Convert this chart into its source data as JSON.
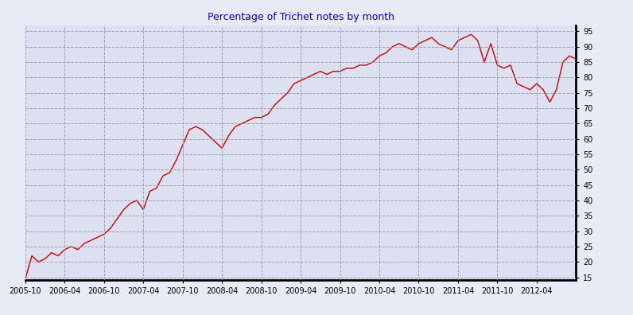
{
  "title": "Percentage of Trichet notes by month",
  "title_color": "#0000cc",
  "background_color": "#e8eaf5",
  "plot_bg_color": "#dde0f0",
  "line_color": "#cc0000",
  "line_width": 1.0,
  "yticks": [
    15,
    20,
    25,
    30,
    35,
    40,
    45,
    50,
    55,
    60,
    65,
    70,
    75,
    80,
    85,
    90,
    95
  ],
  "ylim": [
    14,
    97
  ],
  "xtick_labels": [
    "2005-10",
    "2006-04",
    "2006-10",
    "2007-04",
    "2007-10",
    "2008-04",
    "2008-10",
    "2009-04",
    "2009-10",
    "2010-04",
    "2010-10",
    "2011-04",
    "2011-10",
    "2012-04"
  ],
  "grid_color": "#9999aa",
  "grid_style": "--",
  "xtick_positions": [
    0,
    6,
    12,
    18,
    24,
    30,
    36,
    42,
    48,
    54,
    60,
    66,
    72,
    78
  ],
  "data_y": [
    14.5,
    22,
    20,
    21,
    23,
    22,
    24,
    25,
    24,
    26,
    27,
    28,
    29,
    31,
    34,
    37,
    39,
    40,
    37,
    43,
    44,
    48,
    49,
    53,
    58,
    63,
    64,
    63,
    61,
    59,
    57,
    61,
    64,
    65,
    66,
    67,
    67,
    68,
    71,
    73,
    75,
    78,
    79,
    80,
    81,
    82,
    81,
    82,
    82,
    83,
    83,
    84,
    84,
    85,
    87,
    88,
    90,
    91,
    90,
    89,
    91,
    92,
    93,
    91,
    90,
    89,
    92,
    93,
    94,
    92,
    85,
    91,
    84,
    83,
    84,
    78,
    77,
    76,
    78,
    76,
    72,
    76,
    85,
    87,
    86
  ]
}
